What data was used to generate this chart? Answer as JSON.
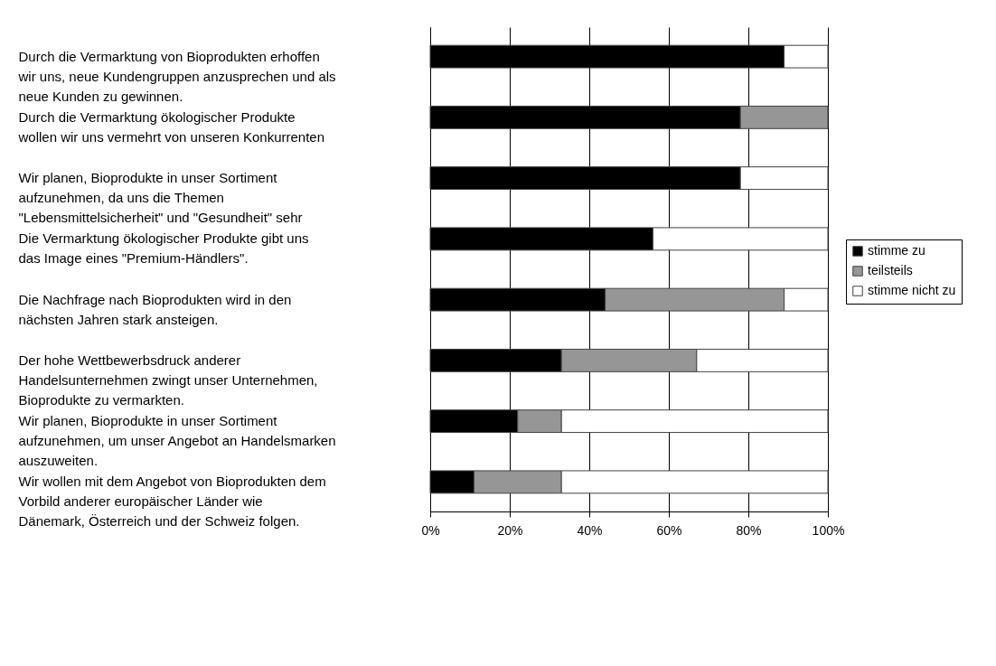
{
  "chart_data": {
    "type": "bar",
    "orientation": "horizontal",
    "stacked": true,
    "categories": [
      "Durch die Vermarktung von Bioprodukten erhoffen\nwir uns, neue Kundengruppen anzusprechen und als\nneue Kunden zu gewinnen.",
      "Durch die Vermarktung ökologischer Produkte\nwollen wir uns vermehrt von unseren Konkurrenten",
      "Wir planen, Bioprodukte in unser Sortiment\naufzunehmen, da uns die Themen\n\"Lebensmittelsicherheit\" und \"Gesundheit\" sehr",
      "Die Vermarktung ökologischer Produkte gibt uns\ndas Image eines \"Premium-Händlers\".",
      "Die Nachfrage nach Bioprodukten wird in den\nnächsten Jahren stark ansteigen.",
      "Der hohe Wettbewerbsdruck anderer\nHandelsunternehmen zwingt unser Unternehmen,\nBioprodukte zu vermarkten.",
      "Wir planen, Bioprodukte in unser Sortiment\naufzunehmen, um unser Angebot an Handelsmarken\nauszuweiten.",
      "Wir wollen mit dem Angebot von Bioprodukten dem\nVorbild anderer europäischer Länder wie\nDänemark, Österreich und der Schweiz folgen."
    ],
    "series": [
      {
        "name": "stimme zu",
        "color": "#000000",
        "values": [
          89,
          78,
          78,
          56,
          44,
          33,
          22,
          11
        ]
      },
      {
        "name": "teilsteils",
        "color": "#969696",
        "values": [
          0,
          22,
          0,
          0,
          45,
          34,
          11,
          22
        ]
      },
      {
        "name": "stimme nicht zu",
        "color": "#ffffff",
        "values": [
          11,
          0,
          22,
          44,
          11,
          33,
          67,
          67
        ]
      }
    ],
    "xlim": [
      0,
      100
    ],
    "xticks": [
      {
        "value": 0,
        "label": "0%"
      },
      {
        "value": 20,
        "label": "20%"
      },
      {
        "value": 40,
        "label": "40%"
      },
      {
        "value": 60,
        "label": "60%"
      },
      {
        "value": 80,
        "label": "80%"
      },
      {
        "value": 100,
        "label": "100%"
      }
    ],
    "grid": "x",
    "legend": "right"
  }
}
